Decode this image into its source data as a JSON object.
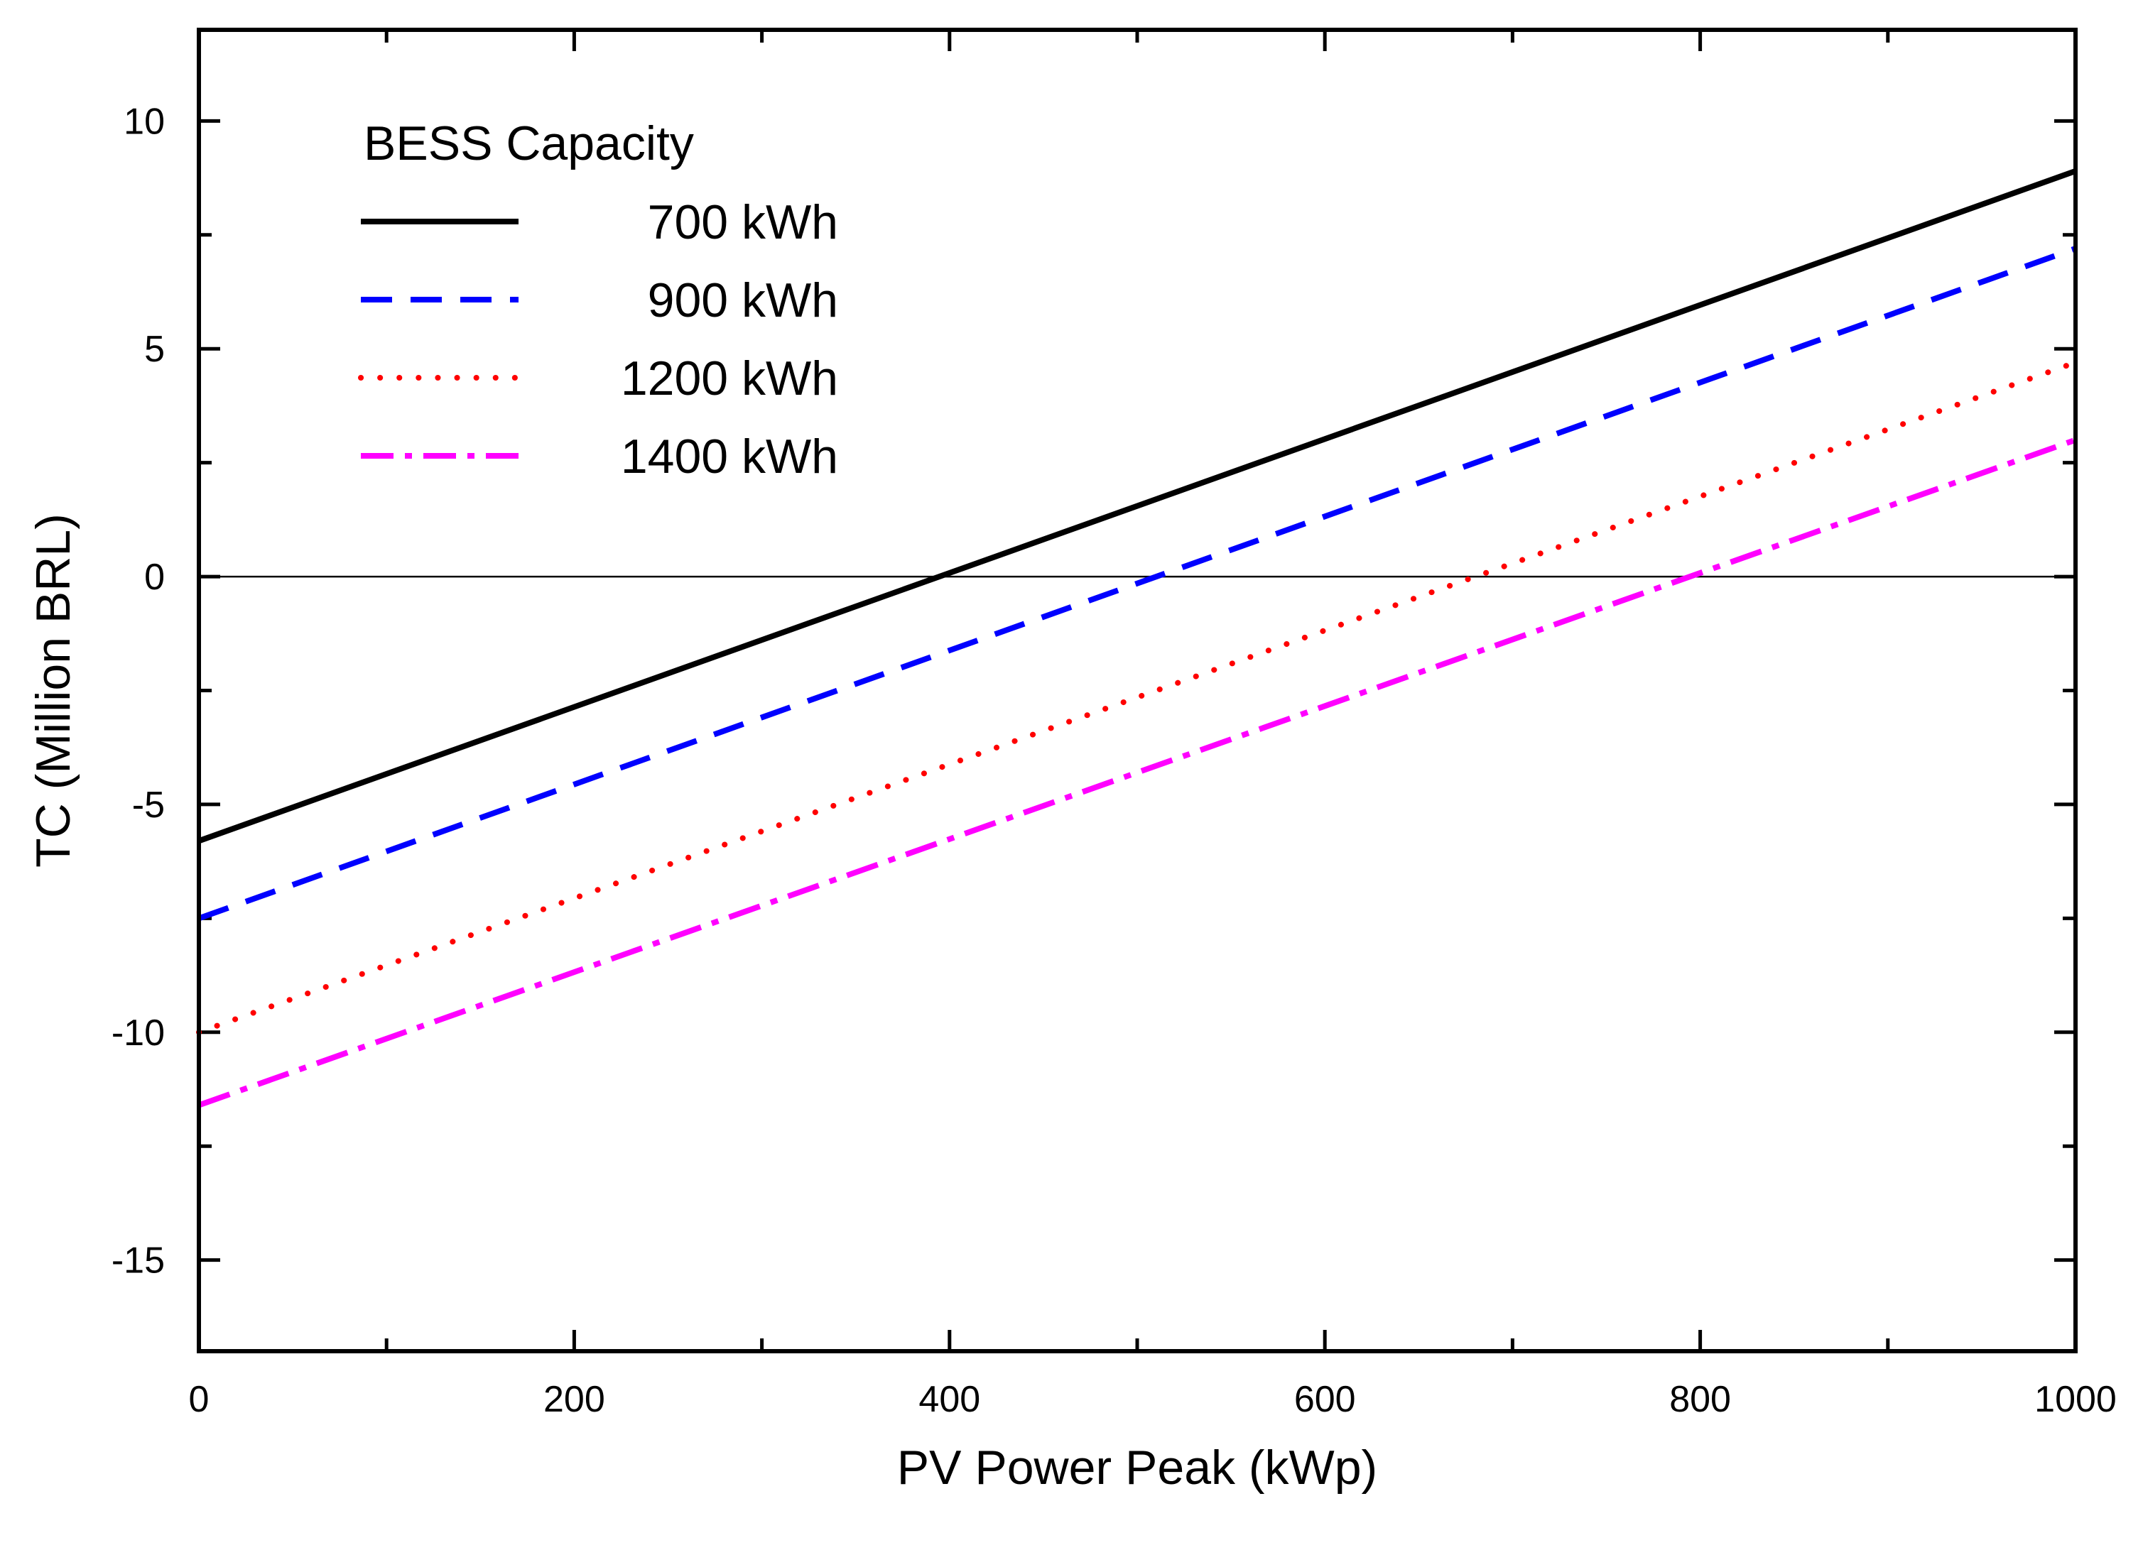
{
  "chart_data": {
    "type": "line",
    "xlabel": "PV Power Peak (kWp)",
    "ylabel": "TC (Million BRL)",
    "xlim": [
      0,
      1000
    ],
    "ylim": [
      -17,
      12
    ],
    "x_ticks": [
      0,
      200,
      400,
      600,
      800,
      1000
    ],
    "x_tick_labels": [
      "0",
      "200",
      "400",
      "600",
      "800",
      "1000"
    ],
    "x_minor_ticks": [
      100,
      300,
      500,
      700,
      900
    ],
    "y_ticks": [
      10,
      5,
      0,
      -5,
      -10,
      -15
    ],
    "y_tick_labels": [
      "10",
      "5",
      "0",
      "-5",
      "-10",
      "-15"
    ],
    "y_minor_ticks": [
      7.5,
      2.5,
      -2.5,
      -7.5,
      -12.5
    ],
    "reference_line_y": 0,
    "grid": false,
    "legend": {
      "title": "BESS Capacity",
      "position": "top-left"
    },
    "series": [
      {
        "name": "700 kWh",
        "color": "#000000",
        "style": "solid",
        "x": [
          0,
          1000
        ],
        "y": [
          -5.8,
          8.9
        ]
      },
      {
        "name": "900 kWh",
        "color": "#0000ff",
        "style": "dashed",
        "x": [
          0,
          1000
        ],
        "y": [
          -7.5,
          7.2
        ]
      },
      {
        "name": "1200 kWh",
        "color": "#ff0000",
        "style": "dotted",
        "x": [
          0,
          1000
        ],
        "y": [
          -10.0,
          4.7
        ]
      },
      {
        "name": "1400 kWh",
        "color": "#ff00ff",
        "style": "dashdot",
        "x": [
          0,
          1000
        ],
        "y": [
          -11.6,
          3.0
        ]
      }
    ]
  }
}
